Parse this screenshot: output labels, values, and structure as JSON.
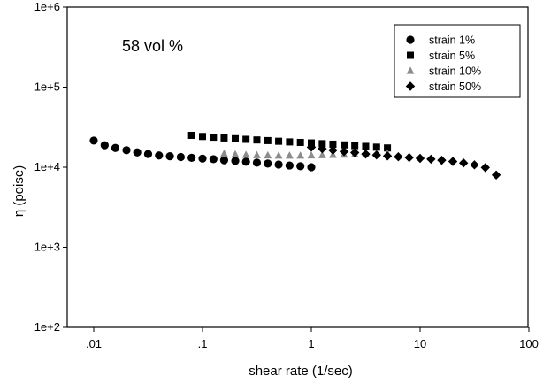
{
  "chart_data": {
    "type": "scatter",
    "title": "",
    "annotation": "58 vol %",
    "xlabel": "shear rate (1/sec)",
    "ylabel": "η (poise)",
    "xscale": "log",
    "yscale": "log",
    "xlim": [
      0.01,
      100
    ],
    "ylim": [
      100,
      1000000
    ],
    "xticks": [
      {
        "value": 0.01,
        "label": ".01"
      },
      {
        "value": 0.1,
        "label": ".1"
      },
      {
        "value": 1,
        "label": "1"
      },
      {
        "value": 10,
        "label": "10"
      },
      {
        "value": 100,
        "label": "100"
      }
    ],
    "yticks": [
      {
        "value": 100,
        "label": "1e+2"
      },
      {
        "value": 1000,
        "label": "1e+3"
      },
      {
        "value": 10000,
        "label": "1e+4"
      },
      {
        "value": 100000,
        "label": "1e+5"
      },
      {
        "value": 1000000,
        "label": "1e+6"
      }
    ],
    "grid": false,
    "legend_position": "top-right",
    "series": [
      {
        "name": "strain 1%",
        "marker": "circle",
        "color": "#000000",
        "points": [
          [
            0.01,
            21500
          ],
          [
            0.0126,
            18800
          ],
          [
            0.0158,
            17400
          ],
          [
            0.02,
            16300
          ],
          [
            0.0251,
            15300
          ],
          [
            0.0316,
            14600
          ],
          [
            0.0398,
            14000
          ],
          [
            0.0501,
            13700
          ],
          [
            0.0631,
            13400
          ],
          [
            0.0794,
            13100
          ],
          [
            0.1,
            12800
          ],
          [
            0.126,
            12600
          ],
          [
            0.158,
            12200
          ],
          [
            0.2,
            12000
          ],
          [
            0.251,
            11700
          ],
          [
            0.316,
            11400
          ],
          [
            0.398,
            11100
          ],
          [
            0.501,
            10800
          ],
          [
            0.631,
            10500
          ],
          [
            0.794,
            10300
          ],
          [
            1.0,
            10000
          ]
        ]
      },
      {
        "name": "strain 5%",
        "marker": "square",
        "color": "#000000",
        "points": [
          [
            0.0794,
            25000
          ],
          [
            0.1,
            24200
          ],
          [
            0.126,
            23700
          ],
          [
            0.158,
            23200
          ],
          [
            0.2,
            22700
          ],
          [
            0.251,
            22300
          ],
          [
            0.316,
            21900
          ],
          [
            0.398,
            21500
          ],
          [
            0.501,
            21100
          ],
          [
            0.631,
            20700
          ],
          [
            0.794,
            20400
          ],
          [
            1.0,
            20100
          ],
          [
            1.26,
            19700
          ],
          [
            1.58,
            19400
          ],
          [
            2.0,
            19000
          ],
          [
            2.51,
            18600
          ],
          [
            3.16,
            18200
          ],
          [
            3.98,
            17800
          ],
          [
            5.01,
            17400
          ]
        ]
      },
      {
        "name": "strain 10%",
        "marker": "triangle",
        "color": "#8c8c8c",
        "points": [
          [
            0.158,
            14800
          ],
          [
            0.2,
            14500
          ],
          [
            0.251,
            14300
          ],
          [
            0.316,
            14200
          ],
          [
            0.398,
            14100
          ],
          [
            0.501,
            14000
          ],
          [
            0.631,
            14000
          ],
          [
            0.794,
            14000
          ],
          [
            1.0,
            14100
          ],
          [
            1.26,
            14200
          ],
          [
            1.58,
            14300
          ],
          [
            2.0,
            14400
          ],
          [
            2.51,
            14500
          ],
          [
            3.16,
            14600
          ],
          [
            3.98,
            14700
          ],
          [
            5.01,
            14800
          ]
        ]
      },
      {
        "name": "strain 50%",
        "marker": "diamond",
        "color": "#000000",
        "points": [
          [
            1.0,
            17800
          ],
          [
            1.26,
            17000
          ],
          [
            1.58,
            16300
          ],
          [
            2.0,
            15700
          ],
          [
            2.51,
            15200
          ],
          [
            3.16,
            14600
          ],
          [
            3.98,
            14200
          ],
          [
            5.01,
            13800
          ],
          [
            6.31,
            13500
          ],
          [
            7.94,
            13200
          ],
          [
            10.0,
            12900
          ],
          [
            12.6,
            12600
          ],
          [
            15.8,
            12200
          ],
          [
            20.0,
            11800
          ],
          [
            25.1,
            11300
          ],
          [
            31.6,
            10700
          ],
          [
            39.8,
            9900
          ],
          [
            50.1,
            8000
          ]
        ]
      }
    ]
  }
}
